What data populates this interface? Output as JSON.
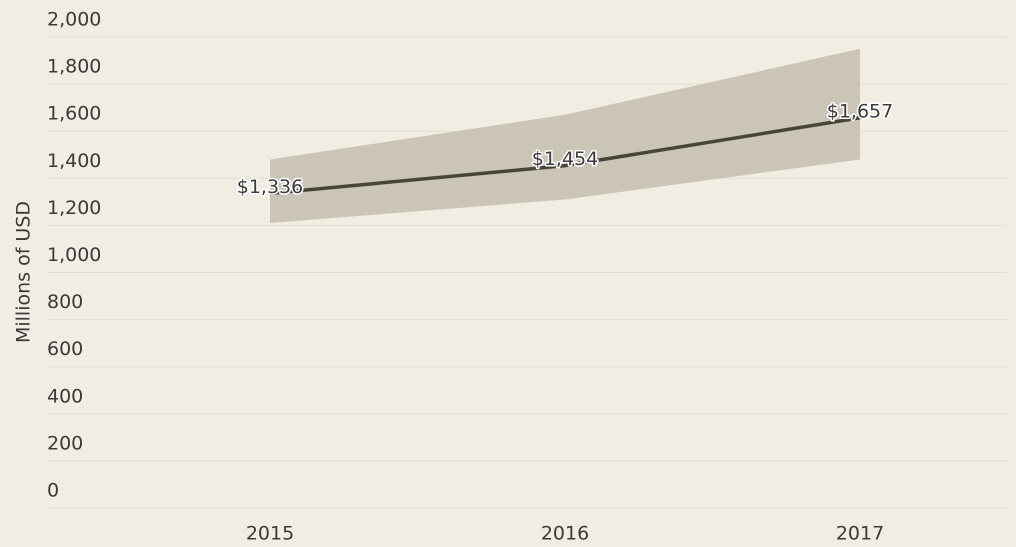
{
  "chart_data": {
    "type": "line",
    "y_label": "Millions of USD",
    "categories": [
      "2015",
      "2016",
      "2017"
    ],
    "values": [
      1336,
      1454,
      1657
    ],
    "value_labels": [
      "$1,336",
      "$1,454",
      "$1,657"
    ],
    "color": "#47443a",
    "band": {
      "lower": [
        1210,
        1310,
        1480
      ],
      "upper": [
        1480,
        1670,
        1950
      ],
      "color": "#cbc5b8"
    },
    "ylim": [
      0,
      2000
    ],
    "yticks": [
      0,
      200,
      400,
      600,
      800,
      {
        "value": 1000,
        "label": "1,000"
      },
      {
        "value": 1200,
        "label": "1,200"
      },
      {
        "value": 1400,
        "label": "1,400"
      },
      {
        "value": 1600,
        "label": "1,600"
      },
      {
        "value": 1800,
        "label": "1,800"
      },
      {
        "value": 2000,
        "label": "2,000"
      }
    ],
    "grid": true
  }
}
